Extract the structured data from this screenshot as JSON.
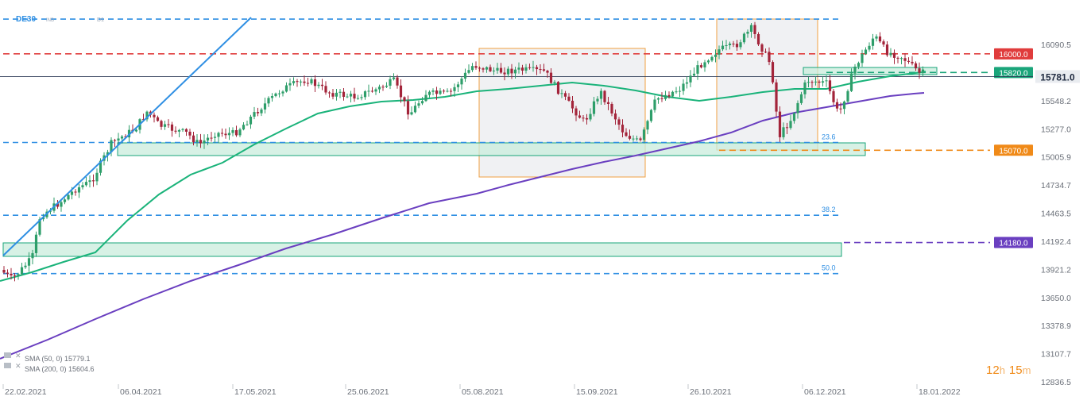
{
  "header": {
    "symbol": "DE30",
    "tag": "IND",
    "timeframe": "D1"
  },
  "indicators": [
    {
      "label": "SMA (50, 0) 15779.1",
      "color": "#1ab37a",
      "icon": "indicator-settings-icon"
    },
    {
      "label": "SMA (200, 0) 15604.6",
      "color": "#6a3fc0",
      "icon": "indicator-settings-icon"
    }
  ],
  "countdown": {
    "hours": "12",
    "h_unit": "h",
    "minutes": "15",
    "m_unit": "m"
  },
  "chart_data": {
    "type": "candlestick",
    "x_labels": [
      "22.02.2021",
      "06.04.2021",
      "17.05.2021",
      "25.06.2021",
      "05.08.2021",
      "15.09.2021",
      "26.10.2021",
      "06.12.2021",
      "18.01.2022"
    ],
    "y_ticks": [
      "16090.5",
      "15548.2",
      "15277.0",
      "15005.9",
      "14734.7",
      "14463.5",
      "14192.4",
      "13921.2",
      "13650.0",
      "13378.9",
      "13107.7",
      "12836.5"
    ],
    "ylim": [
      12836.5,
      16360
    ],
    "current_price": {
      "label": "15781.0",
      "value": 15781.0
    },
    "price_levels": [
      {
        "label": "16000.0",
        "value": 16000.0,
        "color": "#e03c3c"
      },
      {
        "label": "15820.0",
        "value": 15820.0,
        "color": "#1aa57a"
      },
      {
        "label": "15070.0",
        "value": 15070.0,
        "color": "#f08a18"
      },
      {
        "label": "14180.0",
        "value": 14180.0,
        "color": "#6a3fc0"
      }
    ],
    "fibonacci_levels": [
      {
        "label": "23.6",
        "value": 15145
      },
      {
        "label": "38.2",
        "value": 14443
      },
      {
        "label": "50.0",
        "value": 13880
      },
      {
        "label": "",
        "value": 16335
      }
    ],
    "series": [
      {
        "name": "SMA (50, 0)",
        "color": "#1ab37a",
        "last_value": 15779.1
      },
      {
        "name": "SMA (200, 0)",
        "color": "#6a3fc0",
        "last_value": 15604.6
      }
    ],
    "colors": {
      "bull": "#2e9e6a",
      "bear": "#a3243a",
      "fib": "#2f8fe3",
      "zone_fill": "#c9ecdc",
      "zone_stroke": "#1aa57a",
      "box_fill": "#f0f1f3",
      "box_stroke": "#f0a040"
    }
  }
}
